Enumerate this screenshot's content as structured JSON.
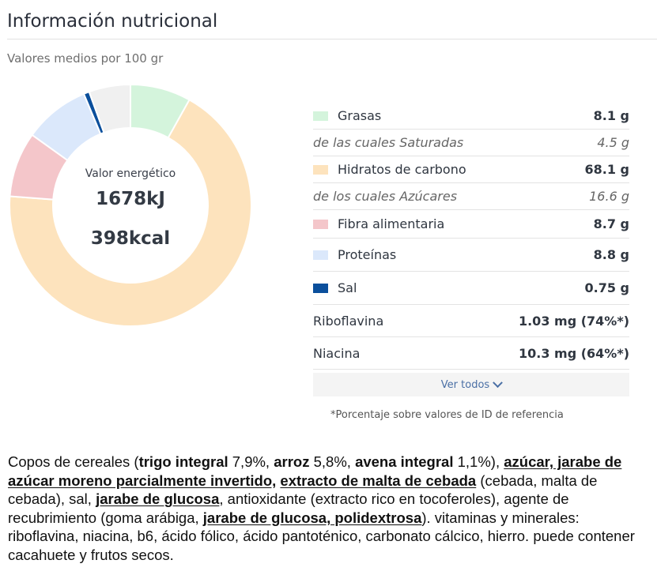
{
  "header": {
    "title": "Información nutricional",
    "subtitle": "Valores medios por 100 gr"
  },
  "energy": {
    "label": "Valor energético",
    "kj": "1678kJ",
    "kcal": "398kcal"
  },
  "chart_data": {
    "type": "pie",
    "categories": [
      "Grasas",
      "Hidratos de carbono",
      "Fibra alimentaria",
      "Proteínas",
      "Sal"
    ],
    "values": [
      8.1,
      68.1,
      8.7,
      8.8,
      0.75
    ],
    "colors": [
      "#d4f4dc",
      "#fde3bd",
      "#f4c6ca",
      "#dbe8fb",
      "#0b4f9c"
    ],
    "remainder_color": "#f0f0f0"
  },
  "nutrients": [
    {
      "name": "Grasas",
      "value": "8.1 g",
      "swatch": "#d4f4dc",
      "sub": false
    },
    {
      "name": "de las cuales Saturadas",
      "value": "4.5 g",
      "swatch": "",
      "sub": true
    },
    {
      "name": "Hidratos de carbono",
      "value": "68.1 g",
      "swatch": "#fde3bd",
      "sub": false
    },
    {
      "name": "de los cuales Azúcares",
      "value": "16.6 g",
      "swatch": "",
      "sub": true
    },
    {
      "name": "Fibra alimentaria",
      "value": "8.7 g",
      "swatch": "#f4c6ca",
      "sub": false
    },
    {
      "name": "Proteínas",
      "value": "8.8 g",
      "swatch": "#dbe8fb",
      "sub": false
    },
    {
      "name": "Sal",
      "value": "0.75 g",
      "swatch": "#0b4f9c",
      "sub": false
    },
    {
      "name": "Riboflavina",
      "value": "1.03 mg (74%*)",
      "swatch": "",
      "sub": false
    },
    {
      "name": "Niacina",
      "value": "10.3 mg (64%*)",
      "swatch": "",
      "sub": false
    }
  ],
  "ver_todos": {
    "label": "Ver todos",
    "icon": "chevron-down-icon"
  },
  "footnote": "*Porcentaje sobre valores de ID de referencia",
  "ingredients": [
    {
      "t": "Copos de cereales (",
      "b": false,
      "u": false
    },
    {
      "t": "trigo integral",
      "b": true,
      "u": false
    },
    {
      "t": " 7,9%, ",
      "b": false,
      "u": false
    },
    {
      "t": "arroz",
      "b": true,
      "u": false
    },
    {
      "t": " 5,8%, ",
      "b": false,
      "u": false
    },
    {
      "t": "avena integral",
      "b": true,
      "u": false
    },
    {
      "t": " 1,1%), ",
      "b": false,
      "u": false
    },
    {
      "t": "azúcar, jarabe de azúcar moreno parcialmente invertido,",
      "b": true,
      "u": true
    },
    {
      "t": " ",
      "b": false,
      "u": false
    },
    {
      "t": "extracto de malta de cebada",
      "b": true,
      "u": true
    },
    {
      "t": " (cebada, malta de cebada), sal, ",
      "b": false,
      "u": false
    },
    {
      "t": "jarabe de glucosa",
      "b": true,
      "u": true
    },
    {
      "t": ", antioxidante (extracto rico en tocoferoles), agente de recubrimiento (goma arábiga, ",
      "b": false,
      "u": false
    },
    {
      "t": "jarabe de glucosa, polidextrosa",
      "b": true,
      "u": true
    },
    {
      "t": "). vitaminas y minerales: riboflavina, niacina, b6, ácido fólico, ácido pantoténico, carbonato cálcico, hierro. puede contener cacahuete y frutos secos.",
      "b": false,
      "u": false
    }
  ]
}
